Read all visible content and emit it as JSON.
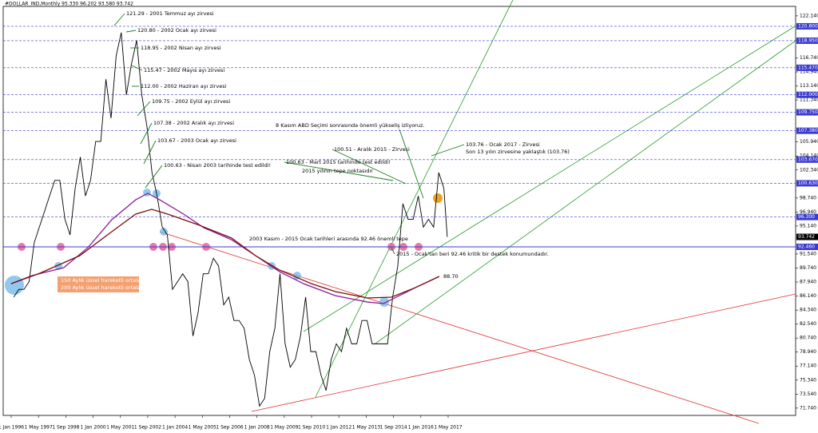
{
  "chart_data": {
    "type": "line",
    "title": "#DOLLAR_IND,Monthly  95.330 96.202 93.580 93.742",
    "xlim": [
      1995.61,
      2034.3
    ],
    "ylim": [
      70.8,
      123.36
    ],
    "xticks": [
      {
        "value": 1996,
        "label": "1 Jan 1996"
      },
      {
        "value": 1997.333,
        "label": "1 May 1997"
      },
      {
        "value": 1998.667,
        "label": "1 Sep 1998"
      },
      {
        "value": 2000,
        "label": "1 Jan 2000"
      },
      {
        "value": 2001.333,
        "label": "1 May 2001"
      },
      {
        "value": 2002.667,
        "label": "1 Sep 2002"
      },
      {
        "value": 2004,
        "label": "1 Jan 2004"
      },
      {
        "value": 2005.333,
        "label": "1 May 2005"
      },
      {
        "value": 2006.667,
        "label": "1 Sep 2006"
      },
      {
        "value": 2008,
        "label": "1 Jan 2008"
      },
      {
        "value": 2009.333,
        "label": "1 May 2009"
      },
      {
        "value": 2010.667,
        "label": "1 Sep 2010"
      },
      {
        "value": 2012,
        "label": "1 Jan 2012"
      },
      {
        "value": 2013.333,
        "label": "1 May 2013"
      },
      {
        "value": 2014.667,
        "label": "1 Sep 2014"
      },
      {
        "value": 2016,
        "label": "1 Jan 2016"
      },
      {
        "value": 2017.333,
        "label": "1 May 2017"
      }
    ],
    "yticks": [
      {
        "value": 71.74,
        "label": "71.740"
      },
      {
        "value": 73.54,
        "label": "73.540"
      },
      {
        "value": 75.34,
        "label": "75.340"
      },
      {
        "value": 77.14,
        "label": "77.140"
      },
      {
        "value": 78.94,
        "label": "78.940"
      },
      {
        "value": 80.74,
        "label": "80.740"
      },
      {
        "value": 82.54,
        "label": "82.540"
      },
      {
        "value": 84.34,
        "label": "84.340"
      },
      {
        "value": 86.14,
        "label": "86.140"
      },
      {
        "value": 87.94,
        "label": "87.940"
      },
      {
        "value": 89.74,
        "label": "89.740"
      },
      {
        "value": 91.54,
        "label": "91.540"
      },
      {
        "value": 95.14,
        "label": "95.140"
      },
      {
        "value": 96.94,
        "label": "96.940"
      },
      {
        "value": 98.74,
        "label": "98.740"
      },
      {
        "value": 102.34,
        "label": "102.340"
      },
      {
        "value": 104.14,
        "label": "104.140"
      },
      {
        "value": 105.94,
        "label": "105.940"
      },
      {
        "value": 111.34,
        "label": "111.340"
      },
      {
        "value": 113.14,
        "label": "113.140"
      },
      {
        "value": 114.94,
        "label": "114.940"
      },
      {
        "value": 116.74,
        "label": "116.740"
      },
      {
        "value": 122.14,
        "label": "122.140"
      }
    ],
    "series": [
      {
        "color": "#000000",
        "x": [
          1996.125,
          1996.375,
          1996.625,
          1996.875,
          1997.125,
          1997.375,
          1997.625,
          1997.875,
          1998.125,
          1998.375,
          1998.625,
          1998.875,
          1999.125,
          1999.375,
          1999.625,
          1999.875,
          2000.125,
          2000.375,
          2000.625,
          2000.875,
          2001.125,
          2001.375,
          2001.625,
          2001.875,
          2002.125,
          2002.375,
          2002.625,
          2002.875,
          2003.125,
          2003.375,
          2003.625,
          2003.875,
          2004.125,
          2004.375,
          2004.625,
          2004.875,
          2005.125,
          2005.375,
          2005.625,
          2005.875,
          2006.125,
          2006.375,
          2006.625,
          2006.875,
          2007.125,
          2007.375,
          2007.625,
          2007.875,
          2008.125,
          2008.375,
          2008.625,
          2008.875,
          2009.125,
          2009.375,
          2009.625,
          2009.875,
          2010.125,
          2010.375,
          2010.625,
          2010.875,
          2011.125,
          2011.375,
          2011.625,
          2011.875,
          2012.125,
          2012.375,
          2012.625,
          2012.875,
          2013.125,
          2013.375,
          2013.625,
          2013.875,
          2014.125,
          2014.375,
          2014.625,
          2014.875,
          2015.125,
          2015.375,
          2015.625,
          2015.875,
          2016.125,
          2016.375,
          2016.625,
          2016.875,
          2017.125,
          2017.29
        ],
        "values": [
          86,
          87,
          87,
          88,
          93,
          95,
          97,
          99,
          101,
          101,
          96,
          94,
          100,
          104,
          99,
          101,
          106,
          106,
          114,
          109,
          117,
          120,
          112,
          116,
          119,
          112,
          108,
          102,
          99,
          95,
          94,
          87,
          88,
          89,
          88,
          81,
          84,
          89,
          89,
          91,
          90,
          85,
          86,
          83,
          83,
          82,
          78,
          76,
          72,
          73,
          79,
          82,
          89,
          80,
          77,
          78,
          81,
          86,
          79,
          79,
          76,
          74,
          78,
          80,
          79,
          82,
          80,
          80,
          83,
          83,
          80,
          80,
          80,
          80,
          86,
          90,
          98,
          96,
          96,
          99,
          95,
          96,
          95,
          102,
          100,
          93.742
        ]
      },
      {
        "name": "150 Aylık üssel hareketli ortalama",
        "color": "#8b1a9a",
        "x": [
          1996.0,
          1997.01,
          1998.57,
          1999.74,
          2000.91,
          2002.08,
          2002.67,
          2003.25,
          2004.42,
          2005.4,
          2006.76,
          2007.93,
          2009.1,
          2010.27,
          2011.83,
          2013.39,
          2014.17,
          2014.95,
          2015.73,
          2016.9
        ],
        "values": [
          87.73,
          88.76,
          89.79,
          92.35,
          95.95,
          98.51,
          99.34,
          98.51,
          96.67,
          94.92,
          93.38,
          91.33,
          89.27,
          87.73,
          86.19,
          85.37,
          85.17,
          86.19,
          87.22,
          88.66
        ]
      },
      {
        "name": "200 Aylık üssel hareketli ortalama",
        "color": "#7a0e0e",
        "x": [
          1996.0,
          1997.4,
          1999.35,
          2000.91,
          2002.08,
          2002.86,
          2003.64,
          2005.2,
          2006.76,
          2007.93,
          2009.1,
          2010.66,
          2011.83,
          2013.39,
          2014.56,
          2015.73,
          2016.9
        ],
        "values": [
          87.73,
          89.07,
          91.33,
          94.41,
          96.67,
          97.28,
          96.67,
          95.23,
          93.59,
          91.33,
          89.48,
          87.73,
          86.71,
          85.89,
          85.99,
          87.22,
          88.66
        ]
      }
    ],
    "levels": [
      {
        "value": 120.8,
        "label": "120.800"
      },
      {
        "value": 118.95,
        "label": "118.950"
      },
      {
        "value": 115.47,
        "label": "115.470"
      },
      {
        "value": 112.0,
        "label": "112.000"
      },
      {
        "value": 109.75,
        "label": "109.750"
      },
      {
        "value": 107.38,
        "label": "107.380"
      },
      {
        "value": 103.67,
        "label": "103.670"
      },
      {
        "value": 100.63,
        "label": "100.630"
      },
      {
        "value": 96.3,
        "label": "96.300"
      },
      {
        "value": 92.46,
        "label": "92.460"
      }
    ],
    "levels_color": "#3a3ad0",
    "last_price": {
      "value": 93.742,
      "label": "93.742"
    },
    "annotations": [
      "121.29 - 2001 Temmuz ayı zirvesi",
      "120.80 - 2002 Ocak ayı zirvesi",
      "118.95 - 2002 Nisan ayı zirvesi",
      "115.47 - 2002 Mayıs ayı zirvesi",
      "112.00 - 2002 Haziran ayı zirvesi",
      "109.75 - 2002 Eylül ayı zirvesi",
      "107.38 - 2002 Aralık ayı zirvesi",
      "103.67 - 2003 Ocak ayı zirvesi",
      "100.63 - Nisan 2003 tarihinde test edildi!",
      "8 Kasım ABD Seçimi sonrasında önemli yükseliş izliyoruz.",
      "103.76 - Ocak 2017 - Zirvesi",
      "Son 13 yılın zirvesine yaklaştık (103.76)",
      "100.51 - Aralık 2015 - Zirvesi",
      "100.63 - Mart 2015 tarihinde test edildi!",
      "2015 yılının tepe noktasıdır",
      "2003 Kasım - 2015 Ocak tarihleri arasında 92.46 önemli tepe",
      "2015 - Ocak'tan beri 92.46 kritik bir destek konumundadır.",
      "88.70"
    ]
  }
}
